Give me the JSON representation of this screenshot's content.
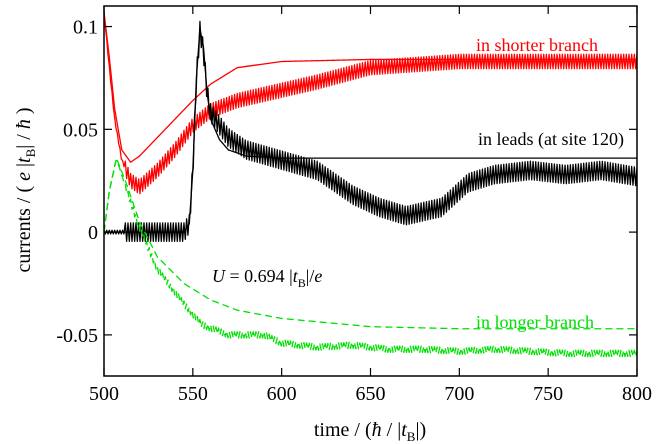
{
  "chart_data": {
    "type": "line",
    "xlabel": "time / (ħ / |t_B|)",
    "ylabel": "currents / ( e |t_B| / ħ )",
    "xlim": [
      500,
      800
    ],
    "ylim": [
      -0.07,
      0.11
    ],
    "xticks": [
      "500",
      "550",
      "600",
      "650",
      "700",
      "750",
      "800"
    ],
    "yticks": [
      "-0.05",
      "0",
      "0.05",
      "0.1"
    ],
    "grid": false,
    "annotations": [
      {
        "text": "in shorter branch",
        "color": "#ff0000"
      },
      {
        "text": "in leads (at site 120)",
        "color": "#000000"
      },
      {
        "text": "in longer branch",
        "color": "#00e000"
      },
      {
        "text": "U = 0.694 |t_B|/e",
        "color": "#000000"
      }
    ],
    "series": [
      {
        "color": "#ff0000",
        "style": "solid",
        "smooth": true,
        "x": [
          500,
          503,
          506,
          510,
          515,
          520,
          530,
          540,
          550,
          560,
          575,
          600,
          650,
          700,
          750,
          800
        ],
        "y": [
          0.107,
          0.085,
          0.06,
          0.04,
          0.034,
          0.037,
          0.046,
          0.055,
          0.064,
          0.072,
          0.08,
          0.083,
          0.084,
          0.084,
          0.084,
          0.084
        ]
      },
      {
        "color": "#ff0000",
        "style": "solid",
        "smooth": false,
        "oscillation": 0.0035,
        "x": [
          500,
          503,
          506,
          510,
          515,
          520,
          530,
          540,
          550,
          560,
          575,
          600,
          620,
          650,
          700,
          750,
          800
        ],
        "y": [
          0.107,
          0.08,
          0.055,
          0.035,
          0.025,
          0.022,
          0.03,
          0.04,
          0.052,
          0.059,
          0.064,
          0.069,
          0.073,
          0.08,
          0.083,
          0.083,
          0.083
        ]
      },
      {
        "color": "#000000",
        "style": "solid",
        "smooth": true,
        "x": [
          500,
          545,
          548,
          550,
          552,
          554,
          556,
          558,
          560,
          565,
          570,
          580,
          600,
          650,
          700,
          800
        ],
        "y": [
          0,
          0,
          0.004,
          0.03,
          0.075,
          0.099,
          0.09,
          0.068,
          0.055,
          0.045,
          0.04,
          0.037,
          0.036,
          0.036,
          0.036,
          0.036
        ]
      },
      {
        "color": "#000000",
        "style": "solid",
        "smooth": false,
        "oscillation": 0.0045,
        "x": [
          500,
          545,
          548,
          550,
          552,
          554,
          556,
          558,
          560,
          565,
          570,
          580,
          600,
          620,
          640,
          655,
          670,
          690,
          705,
          720,
          740,
          760,
          780,
          800
        ],
        "y": [
          0,
          0,
          0.004,
          0.03,
          0.075,
          0.098,
          0.088,
          0.068,
          0.058,
          0.052,
          0.046,
          0.04,
          0.035,
          0.03,
          0.018,
          0.012,
          0.008,
          0.012,
          0.024,
          0.028,
          0.03,
          0.028,
          0.03,
          0.027
        ]
      },
      {
        "color": "#00e000",
        "style": "dashed",
        "smooth": true,
        "x": [
          500,
          503,
          507,
          512,
          520,
          530,
          545,
          560,
          575,
          600,
          650,
          700,
          750,
          800
        ],
        "y": [
          0,
          0.02,
          0.036,
          0.025,
          0.005,
          -0.012,
          -0.025,
          -0.033,
          -0.038,
          -0.042,
          -0.046,
          -0.047,
          -0.047,
          -0.047
        ]
      },
      {
        "color": "#00e000",
        "style": "dashed",
        "smooth": false,
        "oscillation": 0.0015,
        "x": [
          500,
          503,
          507,
          512,
          520,
          530,
          545,
          555,
          570,
          590,
          600,
          620,
          640,
          660,
          680,
          700,
          720,
          740,
          760,
          780,
          800
        ],
        "y": [
          0,
          0.02,
          0.036,
          0.022,
          0.002,
          -0.018,
          -0.035,
          -0.045,
          -0.05,
          -0.05,
          -0.054,
          -0.056,
          -0.055,
          -0.057,
          -0.057,
          -0.058,
          -0.057,
          -0.058,
          -0.059,
          -0.059,
          -0.059
        ]
      }
    ]
  }
}
